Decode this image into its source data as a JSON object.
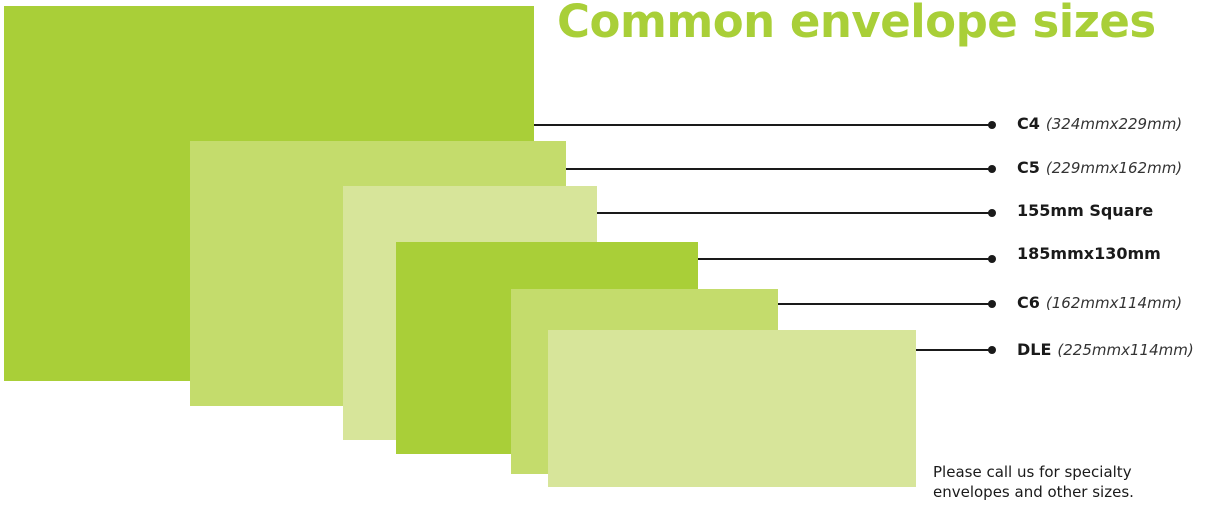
{
  "title": "Common envelope sizes",
  "colors": {
    "title": "#a9cf38",
    "c4": "#a9cf38",
    "c5": "#c4dc6c",
    "square": "#d7e59a",
    "s185": "#a9cf38",
    "c6": "#c4dc6c",
    "dle": "#d7e59a"
  },
  "envelopes": [
    {
      "id": "c4",
      "name": "C4",
      "dims": "(324mmx229mm)"
    },
    {
      "id": "c5",
      "name": "C5",
      "dims": "(229mmx162mm)"
    },
    {
      "id": "square",
      "name": "155mm Square",
      "dims": ""
    },
    {
      "id": "s185",
      "name": "185mmx130mm",
      "dims": ""
    },
    {
      "id": "c6",
      "name": "C6",
      "dims": "(162mmx114mm)"
    },
    {
      "id": "dle",
      "name": "DLE",
      "dims": "(225mmx114mm)"
    }
  ],
  "note": {
    "line1": "Please call us for specialty",
    "line2": "envelopes and other sizes."
  }
}
